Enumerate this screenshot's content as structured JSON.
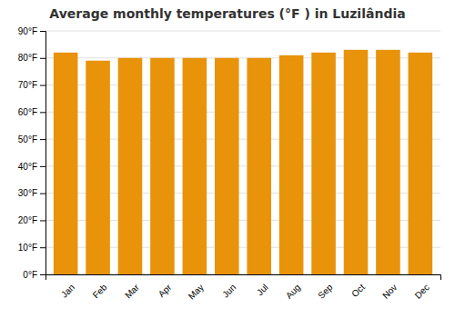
{
  "chart_data": {
    "type": "bar",
    "title": "Average monthly temperatures (°F ) in Luzilândia",
    "categories": [
      "Jan",
      "Feb",
      "Mar",
      "Apr",
      "May",
      "Jun",
      "Jul",
      "Aug",
      "Sep",
      "Oct",
      "Nov",
      "Dec"
    ],
    "values": [
      82,
      79,
      80,
      80,
      80,
      80,
      80,
      81,
      82,
      83,
      83,
      82
    ],
    "color": "#E8930A",
    "ylim": [
      0,
      90
    ],
    "yticks": [
      {
        "value": 0,
        "label": "0°F"
      },
      {
        "value": 10,
        "label": "10°F"
      },
      {
        "value": 20,
        "label": "20°F"
      },
      {
        "value": 30,
        "label": "30°F"
      },
      {
        "value": 40,
        "label": "40°F"
      },
      {
        "value": 50,
        "label": "50°F"
      },
      {
        "value": 60,
        "label": "60°F"
      },
      {
        "value": 70,
        "label": "70°F"
      },
      {
        "value": 80,
        "label": "80°F"
      },
      {
        "value": 90,
        "label": "90°F"
      }
    ],
    "grid": true
  }
}
